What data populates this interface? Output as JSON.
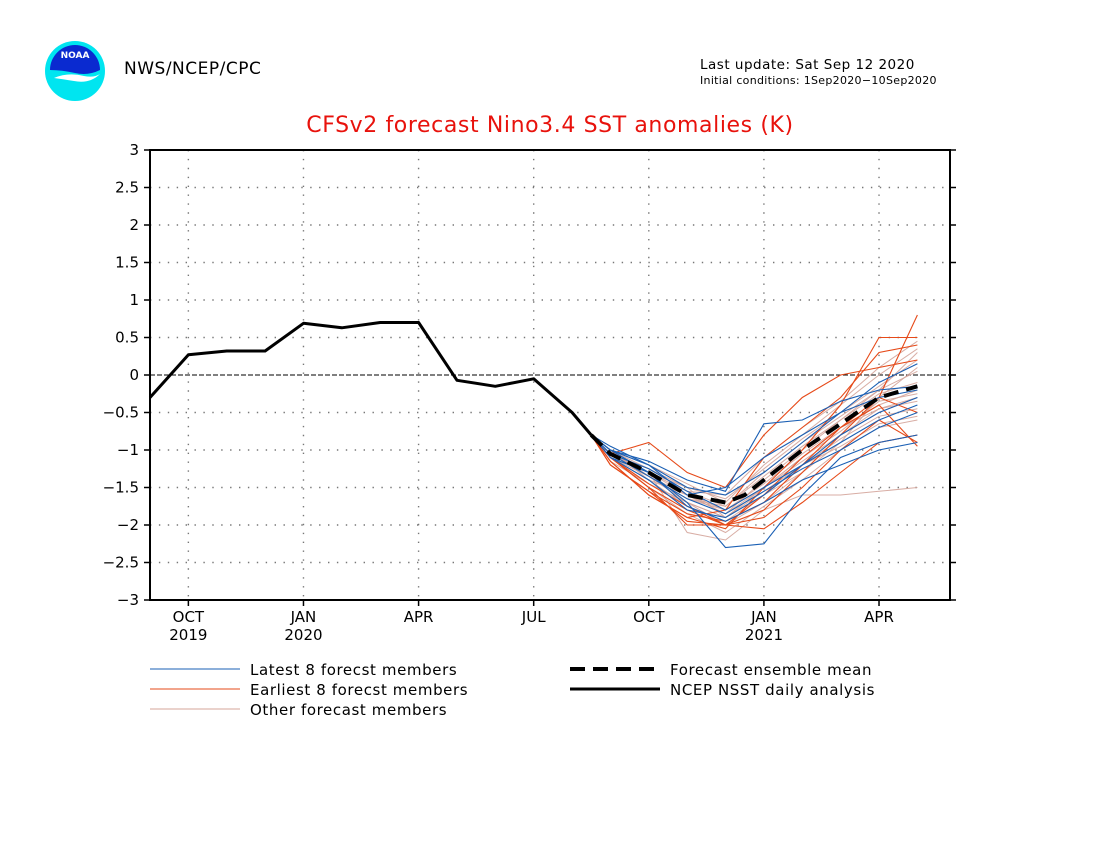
{
  "header": {
    "org": "NWS/NCEP/CPC",
    "last_update": "Last update: Sat Sep 12 2020",
    "initial_conditions": "Initial conditions: 1Sep2020−10Sep2020",
    "logo_text": "NOAA",
    "logo_colors": {
      "outer": "#00e5f0",
      "inner": "#0a2ad0",
      "bird": "#ffffff"
    }
  },
  "chart_data": {
    "type": "line",
    "title": "CFSv2 forecast Nino3.4 SST anomalies (K)",
    "xlabel": "",
    "ylabel": "",
    "xlim": [
      0,
      20.85
    ],
    "ylim": [
      -3,
      3
    ],
    "grid": "dotted",
    "reference_line": 0,
    "y_ticks": [
      3,
      2.5,
      2,
      1.5,
      1,
      0.5,
      0,
      -0.5,
      -1,
      -1.5,
      -2,
      -2.5,
      -3
    ],
    "y_tick_labels": [
      "3",
      "2.5",
      "2",
      "1.5",
      "1",
      "0.5",
      "0",
      "−0.5",
      "−1",
      "−1.5",
      "−2",
      "−2.5",
      "−3"
    ],
    "x_ticks": [
      {
        "x": 1,
        "label": "OCT",
        "year": "2019"
      },
      {
        "x": 4,
        "label": "JAN",
        "year": "2020"
      },
      {
        "x": 7,
        "label": "APR",
        "year": ""
      },
      {
        "x": 10,
        "label": "JUL",
        "year": ""
      },
      {
        "x": 13,
        "label": "OCT",
        "year": ""
      },
      {
        "x": 16,
        "label": "JAN",
        "year": "2021"
      },
      {
        "x": 19,
        "label": "APR",
        "year": ""
      }
    ],
    "legend": [
      {
        "key": "latest",
        "label": "Latest 8 forecst members",
        "color": "#1a5fb4",
        "style": "thin"
      },
      {
        "key": "earliest",
        "label": "Earliest 8 forecst members",
        "color": "#e64a19",
        "style": "thin"
      },
      {
        "key": "other",
        "label": "Other forecast members",
        "color": "#d4a49a",
        "style": "thin"
      },
      {
        "key": "mean",
        "label": "Forecast ensemble mean",
        "color": "#000000",
        "style": "dashed"
      },
      {
        "key": "analysis",
        "label": "NCEP NSST daily analysis",
        "color": "#000000",
        "style": "solid"
      }
    ],
    "series": [
      {
        "name": "NCEP NSST daily analysis",
        "x": [
          0,
          1,
          2,
          3,
          4,
          5,
          6,
          7,
          8,
          9,
          10,
          11,
          11.5
        ],
        "y": [
          -0.3,
          0.27,
          0.32,
          0.32,
          0.69,
          0.63,
          0.7,
          0.7,
          -0.07,
          -0.15,
          -0.05,
          -0.5,
          -0.8
        ]
      },
      {
        "name": "Forecast ensemble mean",
        "x": [
          11.5,
          12,
          13,
          14,
          15,
          15.5,
          16,
          17,
          18,
          19,
          20
        ],
        "y": [
          -0.8,
          -1.05,
          -1.3,
          -1.6,
          -1.7,
          -1.6,
          -1.4,
          -1.0,
          -0.65,
          -0.3,
          -0.15
        ]
      }
    ],
    "members": {
      "x": [
        11.5,
        12,
        13,
        14,
        15,
        16,
        17,
        18,
        19,
        20
      ],
      "latest": [
        [
          -0.8,
          -0.95,
          -1.2,
          -1.5,
          -1.6,
          -1.3,
          -0.9,
          -0.5,
          -0.1,
          0.15
        ],
        [
          -0.8,
          -1.0,
          -1.3,
          -1.7,
          -2.3,
          -2.25,
          -1.6,
          -1.1,
          -0.9,
          -0.8
        ],
        [
          -0.8,
          -1.05,
          -1.25,
          -1.55,
          -1.8,
          -1.5,
          -1.2,
          -0.8,
          -0.5,
          -0.3
        ],
        [
          -0.8,
          -1.1,
          -1.4,
          -1.8,
          -1.9,
          -1.6,
          -1.2,
          -0.9,
          -0.6,
          -0.4
        ],
        [
          -0.8,
          -1.0,
          -1.15,
          -1.4,
          -1.55,
          -0.65,
          -0.6,
          -0.35,
          -0.2,
          -0.15
        ],
        [
          -0.8,
          -1.05,
          -1.35,
          -1.65,
          -1.85,
          -1.55,
          -1.25,
          -1.0,
          -0.7,
          -0.5
        ],
        [
          -0.8,
          -1.0,
          -1.2,
          -1.6,
          -1.5,
          -1.1,
          -0.8,
          -0.5,
          -0.3,
          -0.2
        ],
        [
          -0.8,
          -1.1,
          -1.3,
          -1.75,
          -1.95,
          -1.7,
          -1.4,
          -1.2,
          -1.0,
          -0.9
        ]
      ],
      "earliest": [
        [
          -0.8,
          -1.1,
          -1.5,
          -1.8,
          -2.0,
          -1.8,
          -1.3,
          -0.8,
          -0.3,
          0.8
        ],
        [
          -0.8,
          -1.15,
          -1.6,
          -1.9,
          -2.05,
          -1.5,
          -1.0,
          -0.4,
          0.5,
          0.5
        ],
        [
          -0.8,
          -1.05,
          -0.9,
          -1.3,
          -1.5,
          -0.8,
          -0.3,
          0.0,
          0.1,
          0.2
        ],
        [
          -0.8,
          -1.2,
          -1.55,
          -1.85,
          -1.95,
          -1.7,
          -1.2,
          -0.7,
          -0.3,
          -0.5
        ],
        [
          -0.8,
          -1.1,
          -1.5,
          -2.0,
          -2.0,
          -1.9,
          -1.5,
          -1.0,
          -0.6,
          -0.9
        ],
        [
          -0.8,
          -1.15,
          -1.6,
          -1.9,
          -1.8,
          -1.1,
          -0.7,
          -0.3,
          0.3,
          0.4
        ],
        [
          -0.8,
          -1.1,
          -1.45,
          -1.75,
          -2.0,
          -2.05,
          -1.7,
          -1.3,
          -0.9,
          -0.8
        ],
        [
          -0.8,
          -1.2,
          -1.55,
          -1.95,
          -2.0,
          -1.6,
          -1.1,
          -0.7,
          -0.4,
          -0.95
        ]
      ],
      "other": [
        [
          -0.8,
          -1.0,
          -1.4,
          -1.6,
          -1.85,
          -1.4,
          -1.0,
          -0.6,
          -0.2,
          0.3
        ],
        [
          -0.8,
          -1.1,
          -1.3,
          -2.1,
          -2.2,
          -1.8,
          -1.6,
          -1.6,
          -1.55,
          -1.5
        ],
        [
          -0.8,
          -1.05,
          -1.25,
          -1.5,
          -1.9,
          -1.6,
          -1.3,
          -0.9,
          -0.3,
          0.1
        ],
        [
          -0.8,
          -1.0,
          -1.35,
          -1.7,
          -1.9,
          -1.5,
          -1.1,
          -0.7,
          -0.45,
          -0.35
        ],
        [
          -0.8,
          -1.15,
          -1.45,
          -1.7,
          -2.0,
          -1.7,
          -1.3,
          -0.8,
          -0.5,
          -0.3
        ],
        [
          -0.8,
          -1.0,
          -1.2,
          -1.45,
          -1.7,
          -1.2,
          -0.8,
          -0.4,
          0.0,
          0.35
        ],
        [
          -0.8,
          -1.1,
          -1.35,
          -1.6,
          -1.8,
          -1.45,
          -1.05,
          -0.7,
          -0.4,
          -0.2
        ],
        [
          -0.8,
          -1.05,
          -1.3,
          -1.55,
          -1.75,
          -1.35,
          -0.95,
          -0.6,
          -0.25,
          -0.1
        ],
        [
          -0.8,
          -1.1,
          -1.4,
          -1.75,
          -1.95,
          -1.6,
          -1.2,
          -0.85,
          -0.55,
          -0.45
        ],
        [
          -0.8,
          -1.0,
          -1.3,
          -1.5,
          -1.65,
          -1.25,
          -0.85,
          -0.5,
          -0.15,
          0.2
        ],
        [
          -0.8,
          -1.1,
          -1.5,
          -1.85,
          -2.1,
          -1.75,
          -1.4,
          -1.0,
          -0.7,
          -0.6
        ],
        [
          -0.8,
          -1.05,
          -1.35,
          -1.65,
          -1.8,
          -1.5,
          -1.15,
          -0.8,
          -0.45,
          -0.3
        ],
        [
          -0.8,
          -1.0,
          -1.25,
          -1.55,
          -1.6,
          -1.1,
          -0.7,
          -0.35,
          0.1,
          0.45
        ],
        [
          -0.8,
          -1.1,
          -1.45,
          -1.7,
          -1.9,
          -1.55,
          -1.2,
          -0.95,
          -0.65,
          -0.55
        ],
        [
          -0.8,
          -1.05,
          -1.3,
          -1.6,
          -1.85,
          -1.5,
          -1.1,
          -0.75,
          -0.35,
          -0.25
        ],
        [
          -0.8,
          -1.0,
          -1.35,
          -1.65,
          -1.75,
          -1.3,
          -0.9,
          -0.55,
          -0.2,
          0.05
        ]
      ]
    }
  }
}
